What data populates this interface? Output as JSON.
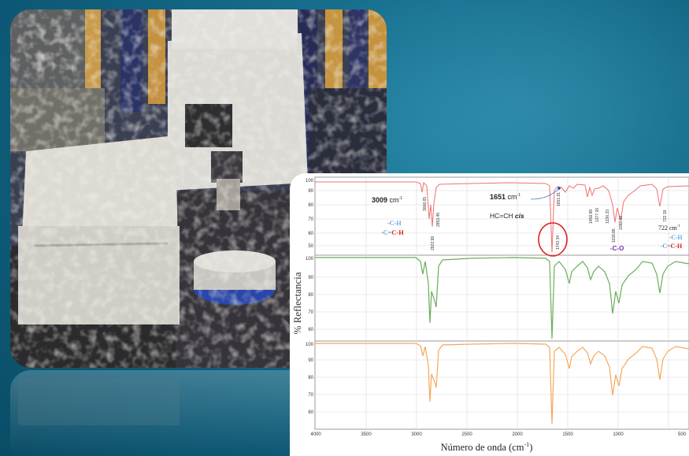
{
  "spectrum": {
    "y_axis_label": "% Reflectancia",
    "x_axis_label": "Número  de onda (cm",
    "x_axis_label_sup": "-1",
    "x_axis_label_end": ")",
    "x_ticks": [
      "4000",
      "3500",
      "3000",
      "2500",
      "2000",
      "1500",
      "1000",
      "500"
    ],
    "panel1_y_ticks": [
      "100",
      "90",
      "80",
      "70",
      "60",
      "50"
    ],
    "panel2_y_ticks": [
      "100",
      "90",
      "80",
      "70",
      "60"
    ],
    "panel3_y_ticks": [
      "100",
      "90",
      "80",
      "70",
      "60"
    ],
    "annotations": {
      "peak_3009": "3009",
      "peak_3009_unit": "cm",
      "peak_3009_sup": "-1",
      "ch_blue": "-C-H",
      "ceq_ch_black": "-C=",
      "ceq_ch_red": "C-H",
      "peak_1651": "1651",
      "peak_1651_unit": "cm",
      "peak_1651_sup": "-1",
      "hc_cis": "HC=CH",
      "hc_cis_italic": "cis",
      "co_label": "-C-O",
      "peak_722": "722",
      "peak_722_unit": "cm",
      "peak_722_sup": "-1",
      "ch_blue_2": "-C-H",
      "ceq_ch_black_2": "-C=",
      "ceq_ch_red_2": "C-H"
    },
    "peak_labels": [
      "3006.65",
      "2922.99",
      "2853.45",
      "1743.34",
      "1651.81",
      "1458.99",
      "1377.26",
      "1236.33",
      "1159.86",
      "1098.32",
      "722.19"
    ]
  }
}
